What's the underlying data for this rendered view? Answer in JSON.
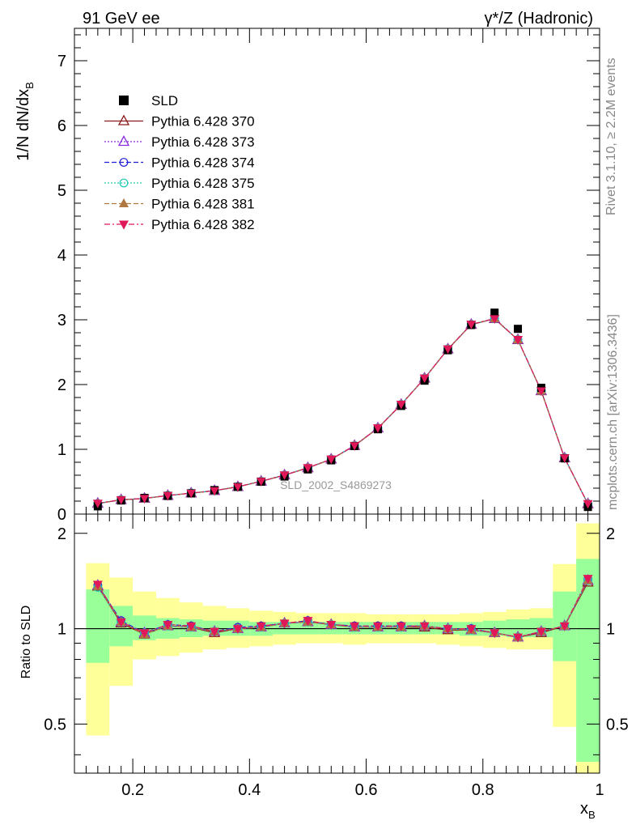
{
  "header": {
    "left_label": "91 GeV ee",
    "right_label": "γ*/Z (Hadronic)"
  },
  "side_text": {
    "rivet": "Rivet 3.1.10, ≥ 2.2M events",
    "mcplots": "mcplots.cern.ch [arXiv:1306.3436]"
  },
  "watermark": "SLD_2002_S4869273",
  "axes": {
    "ylabel_main": "1/N dN/dx",
    "ylabel_main_sub": "B",
    "ylabel_ratio": "Ratio to SLD",
    "xlabel": "x",
    "xlabel_sub": "B"
  },
  "legend": [
    {
      "label": "SLD",
      "color": "#000000",
      "marker": "square"
    },
    {
      "label": "Pythia 6.428 370",
      "color": "#8b1a1a",
      "marker": "open-triangle-up"
    },
    {
      "label": "Pythia 6.428 373",
      "color": "#8a2be2",
      "marker": "open-triangle-up"
    },
    {
      "label": "Pythia 6.428 374",
      "color": "#1f1fd6",
      "marker": "open-circle"
    },
    {
      "label": "Pythia 6.428 375",
      "color": "#1ec8b4",
      "marker": "open-circle"
    },
    {
      "label": "Pythia 6.428 381",
      "color": "#b07840",
      "marker": "filled-triangle-up"
    },
    {
      "label": "Pythia 6.428 382",
      "color": "#e0185a",
      "marker": "filled-triangle-down"
    }
  ],
  "chart_data": [
    {
      "type": "line",
      "xlim": [
        0.1,
        1.0
      ],
      "ylim": [
        0,
        7.5
      ],
      "xticks": [
        0.2,
        0.4,
        0.6,
        0.8,
        1
      ],
      "xtick_labels": [
        "0.2",
        "0.4",
        "0.6",
        "0.8",
        "1"
      ],
      "yticks": [
        0,
        1,
        2,
        3,
        4,
        5,
        6,
        7
      ],
      "ytick_labels": [
        "0",
        "1",
        "2",
        "3",
        "4",
        "5",
        "6",
        "7"
      ],
      "x": [
        0.14,
        0.18,
        0.22,
        0.26,
        0.3,
        0.34,
        0.38,
        0.42,
        0.46,
        0.5,
        0.54,
        0.58,
        0.62,
        0.66,
        0.7,
        0.74,
        0.78,
        0.82,
        0.86,
        0.9,
        0.94,
        0.98
      ],
      "data_points": [
        0.12,
        0.21,
        0.25,
        0.28,
        0.32,
        0.37,
        0.42,
        0.5,
        0.58,
        0.69,
        0.83,
        1.05,
        1.31,
        1.67,
        2.06,
        2.53,
        2.92,
        3.11,
        2.86,
        1.95,
        0.86,
        0.11
      ],
      "series": [
        {
          "name": "Pythia 6.428 370",
          "values": [
            0.163,
            0.219,
            0.24,
            0.285,
            0.322,
            0.36,
            0.42,
            0.505,
            0.6,
            0.712,
            0.845,
            1.055,
            1.325,
            1.69,
            2.095,
            2.545,
            2.925,
            3.015,
            2.69,
            1.9,
            0.865,
            0.155
          ]
        },
        {
          "name": "Pythia 6.428 373",
          "values": [
            0.165,
            0.22,
            0.242,
            0.286,
            0.323,
            0.361,
            0.421,
            0.507,
            0.602,
            0.714,
            0.847,
            1.057,
            1.328,
            1.693,
            2.098,
            2.548,
            2.928,
            3.018,
            2.693,
            1.903,
            0.867,
            0.158
          ]
        },
        {
          "name": "Pythia 6.428 374",
          "values": [
            0.164,
            0.222,
            0.244,
            0.287,
            0.324,
            0.362,
            0.422,
            0.508,
            0.603,
            0.715,
            0.848,
            1.058,
            1.329,
            1.694,
            2.099,
            2.549,
            2.929,
            3.019,
            2.694,
            1.904,
            0.868,
            0.159
          ]
        },
        {
          "name": "Pythia 6.428 375",
          "values": [
            0.162,
            0.221,
            0.243,
            0.286,
            0.323,
            0.361,
            0.421,
            0.507,
            0.602,
            0.714,
            0.847,
            1.057,
            1.328,
            1.693,
            2.098,
            2.548,
            2.928,
            3.018,
            2.693,
            1.903,
            0.867,
            0.157
          ]
        },
        {
          "name": "Pythia 6.428 381",
          "values": [
            0.163,
            0.22,
            0.241,
            0.286,
            0.323,
            0.361,
            0.421,
            0.506,
            0.601,
            0.713,
            0.846,
            1.056,
            1.327,
            1.692,
            2.097,
            2.547,
            2.927,
            3.017,
            2.692,
            1.902,
            0.866,
            0.158
          ]
        },
        {
          "name": "Pythia 6.428 382",
          "values": [
            0.166,
            0.221,
            0.243,
            0.287,
            0.324,
            0.362,
            0.422,
            0.508,
            0.603,
            0.715,
            0.848,
            1.058,
            1.329,
            1.694,
            2.099,
            2.549,
            2.929,
            3.019,
            2.694,
            1.904,
            0.868,
            0.16
          ]
        }
      ]
    },
    {
      "type": "line",
      "xlim": [
        0.1,
        1.0
      ],
      "ylim": [
        0.35,
        2.3
      ],
      "yticks": [
        0.5,
        1,
        2
      ],
      "ytick_labels": [
        "0.5",
        "1",
        "2"
      ],
      "x": [
        0.14,
        0.18,
        0.22,
        0.26,
        0.3,
        0.34,
        0.38,
        0.42,
        0.46,
        0.5,
        0.54,
        0.58,
        0.62,
        0.66,
        0.7,
        0.74,
        0.78,
        0.82,
        0.86,
        0.9,
        0.94,
        0.98
      ],
      "band_edges": [
        0.12,
        0.16,
        0.2,
        0.24,
        0.28,
        0.32,
        0.36,
        0.4,
        0.44,
        0.48,
        0.52,
        0.56,
        0.6,
        0.64,
        0.68,
        0.72,
        0.76,
        0.8,
        0.84,
        0.88,
        0.92,
        0.96,
        1.0
      ],
      "band_outer_low": [
        0.46,
        0.66,
        0.8,
        0.82,
        0.84,
        0.86,
        0.87,
        0.88,
        0.89,
        0.9,
        0.9,
        0.89,
        0.9,
        0.9,
        0.9,
        0.89,
        0.88,
        0.87,
        0.86,
        0.86,
        0.49,
        0.35
      ],
      "band_outer_high": [
        1.61,
        1.45,
        1.31,
        1.25,
        1.21,
        1.18,
        1.16,
        1.14,
        1.13,
        1.12,
        1.12,
        1.12,
        1.11,
        1.11,
        1.11,
        1.11,
        1.12,
        1.13,
        1.15,
        1.16,
        1.6,
        2.15
      ],
      "band_inner_low": [
        0.78,
        0.88,
        0.92,
        0.93,
        0.94,
        0.95,
        0.95,
        0.95,
        0.96,
        0.96,
        0.96,
        0.96,
        0.96,
        0.96,
        0.96,
        0.96,
        0.95,
        0.95,
        0.94,
        0.94,
        0.79,
        0.38
      ],
      "band_inner_high": [
        1.33,
        1.18,
        1.1,
        1.08,
        1.07,
        1.06,
        1.06,
        1.05,
        1.05,
        1.05,
        1.05,
        1.05,
        1.05,
        1.05,
        1.05,
        1.05,
        1.05,
        1.06,
        1.07,
        1.08,
        1.31,
        1.66
      ],
      "series": [
        {
          "name": "Pythia 6.428 370",
          "values": [
            1.36,
            1.04,
            0.96,
            1.02,
            1.01,
            0.97,
            1.0,
            1.01,
            1.04,
            1.05,
            1.03,
            1.01,
            1.01,
            1.01,
            1.01,
            0.99,
            0.99,
            0.97,
            0.94,
            0.97,
            1.02,
            1.4
          ]
        },
        {
          "name": "Pythia 6.428 373",
          "values": [
            1.37,
            1.05,
            0.97,
            1.02,
            1.01,
            0.98,
            1.0,
            1.01,
            1.04,
            1.05,
            1.03,
            1.01,
            1.01,
            1.01,
            1.02,
            1.0,
            0.99,
            0.97,
            0.94,
            0.98,
            1.02,
            1.42
          ]
        },
        {
          "name": "Pythia 6.428 374",
          "values": [
            1.37,
            1.06,
            0.97,
            1.03,
            1.02,
            0.98,
            1.01,
            1.02,
            1.04,
            1.06,
            1.03,
            1.02,
            1.02,
            1.02,
            1.02,
            1.0,
            1.0,
            0.97,
            0.94,
            0.98,
            1.02,
            1.43
          ]
        },
        {
          "name": "Pythia 6.428 375",
          "values": [
            1.35,
            1.05,
            0.97,
            1.02,
            1.01,
            0.98,
            1.0,
            1.01,
            1.04,
            1.05,
            1.03,
            1.01,
            1.01,
            1.01,
            1.02,
            1.0,
            0.99,
            0.97,
            0.94,
            0.98,
            1.02,
            1.42
          ]
        },
        {
          "name": "Pythia 6.428 381",
          "values": [
            1.36,
            1.05,
            0.96,
            1.02,
            1.01,
            0.98,
            1.0,
            1.01,
            1.04,
            1.05,
            1.03,
            1.01,
            1.01,
            1.01,
            1.02,
            1.0,
            0.99,
            0.97,
            0.94,
            0.98,
            1.02,
            1.42
          ]
        },
        {
          "name": "Pythia 6.428 382",
          "values": [
            1.38,
            1.05,
            0.97,
            1.03,
            1.02,
            0.98,
            1.0,
            1.02,
            1.04,
            1.06,
            1.03,
            1.02,
            1.02,
            1.02,
            1.02,
            1.0,
            1.0,
            0.97,
            0.94,
            0.98,
            1.02,
            1.44
          ]
        }
      ]
    }
  ]
}
